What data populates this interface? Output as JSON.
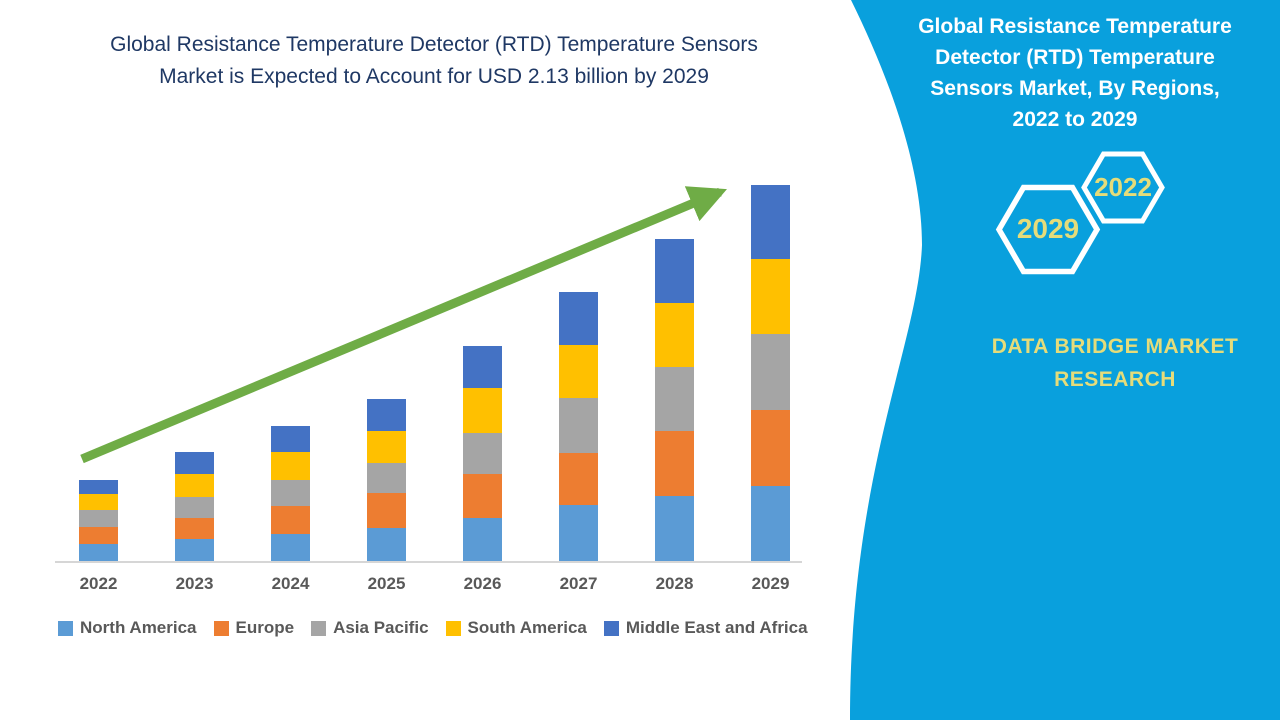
{
  "header": {
    "title": "Global Resistance Temperature Detector (RTD) Temperature Sensors Market is Expected to Account for USD 2.13 billion by 2029",
    "title_lines": [
      "Global Resistance Temperature Detector (RTD) Temperature Sensors",
      "Market is Expected to Account for USD 2.13 billion by 2029"
    ]
  },
  "chart_data": {
    "type": "bar",
    "stacked": true,
    "title": "Global Resistance Temperature Detector (RTD) Temperature Sensors Market is Expected to Account for USD 2.13 billion by 2029",
    "unit": "USD billion",
    "categories": [
      "2022",
      "2023",
      "2024",
      "2025",
      "2026",
      "2027",
      "2028",
      "2029"
    ],
    "series": [
      {
        "name": "North America",
        "color": "#5B9BD5",
        "values": [
          0.096,
          0.123,
          0.155,
          0.189,
          0.246,
          0.317,
          0.369,
          0.425
        ]
      },
      {
        "name": "Europe",
        "color": "#ED7D31",
        "values": [
          0.096,
          0.122,
          0.157,
          0.198,
          0.249,
          0.297,
          0.369,
          0.429
        ]
      },
      {
        "name": "Asia Pacific",
        "color": "#A5A5A5",
        "values": [
          0.096,
          0.117,
          0.146,
          0.17,
          0.232,
          0.312,
          0.363,
          0.431
        ]
      },
      {
        "name": "South America",
        "color": "#FFC000",
        "values": [
          0.091,
          0.129,
          0.162,
          0.18,
          0.255,
          0.297,
          0.364,
          0.425
        ]
      },
      {
        "name": "Middle East and Africa",
        "color": "#4472C4",
        "values": [
          0.079,
          0.126,
          0.147,
          0.183,
          0.236,
          0.302,
          0.359,
          0.419
        ]
      }
    ],
    "totals": [
      0.46,
      0.62,
      0.77,
      0.92,
      1.22,
      1.52,
      1.82,
      2.13
    ],
    "ylim": [
      0,
      2.25
    ],
    "grid": false,
    "y_axis_shown": false,
    "legend_position": "bottom",
    "annotations": [
      "green upward trend arrow from 2022 bar to 2029 bar"
    ]
  },
  "side_panel": {
    "title": "Global Resistance Temperature Detector (RTD) Temperature Sensors Market, By Regions, 2022 to 2029",
    "title_lines": [
      "Global Resistance Temperature",
      "Detector (RTD) Temperature",
      "Sensors Market, By Regions,",
      "2022 to 2029"
    ],
    "hexagons": [
      {
        "year": "2029"
      },
      {
        "year": "2022"
      }
    ],
    "brand_lines": [
      "DATA BRIDGE MARKET",
      "RESEARCH"
    ]
  },
  "colors": {
    "panel_blue": "#09A0DD",
    "arrow_green": "#6FAC46",
    "title_navy": "#1F3864",
    "axis_text_gray": "#595959",
    "khaki_accent": "#E5DC7A",
    "hexagon_outline": "#FFFFFF"
  }
}
